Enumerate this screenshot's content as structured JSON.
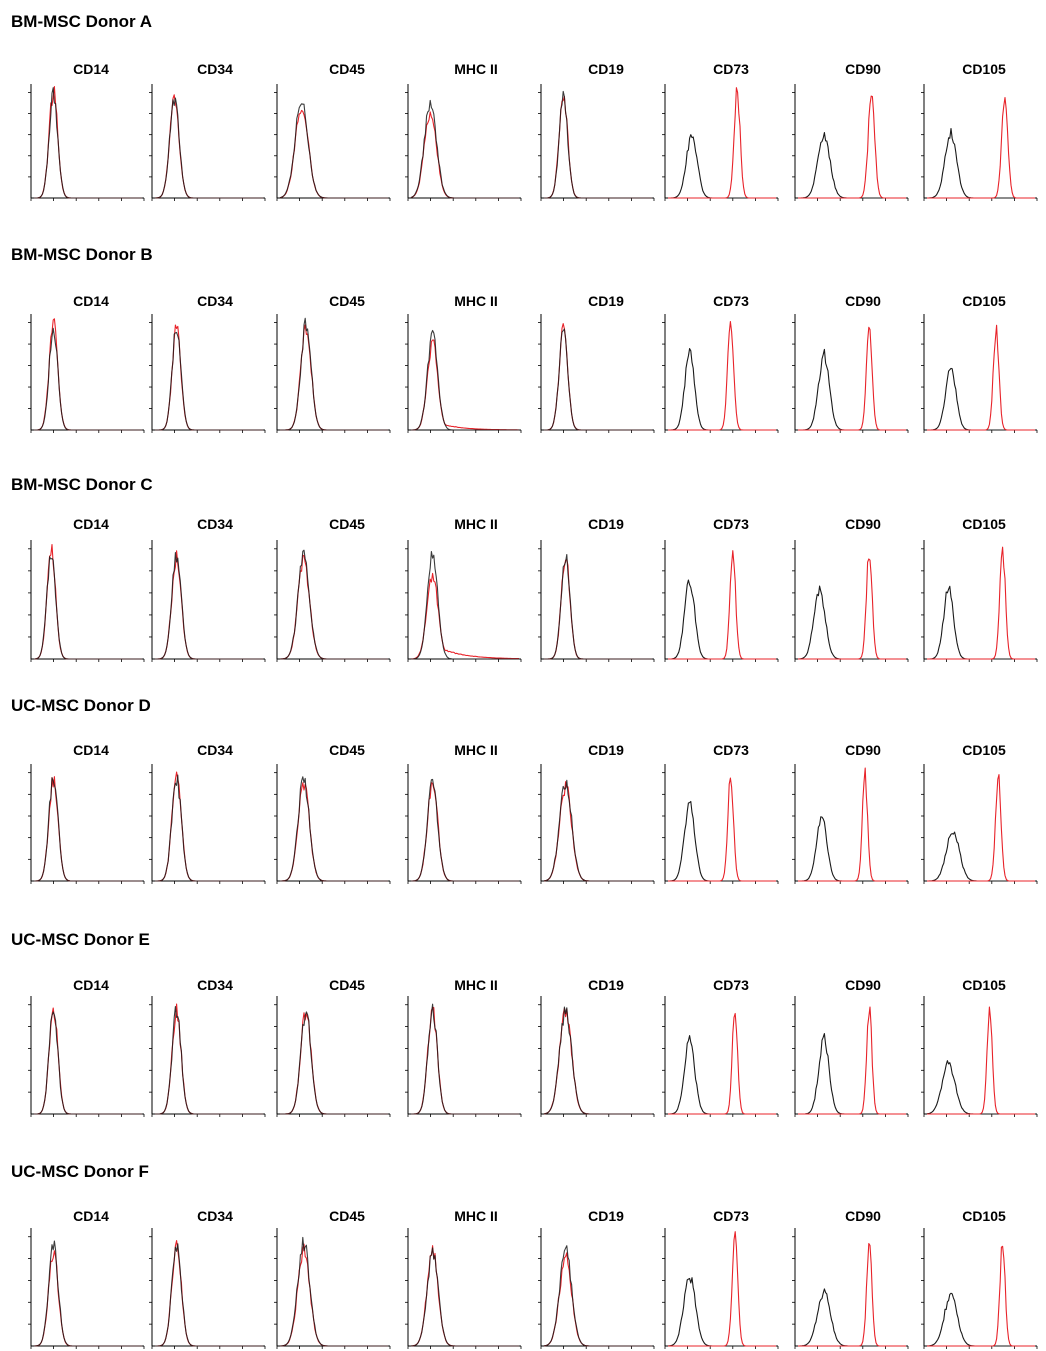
{
  "figure": {
    "type": "flow-cytometry-histogram-panel",
    "colors": {
      "isotype": "#1a1a1a",
      "stained": "#e8232a",
      "background": "#ffffff"
    },
    "markers": [
      "CD14",
      "CD34",
      "CD45",
      "MHC II",
      "CD19",
      "CD73",
      "CD90",
      "CD105"
    ]
  },
  "chart_data": {
    "type": "histogram-grid",
    "x_scale": "log (fluorescence intensity, 5 decades)",
    "series_colors": {
      "isotype": "black",
      "stained": "red"
    },
    "rows": [
      {
        "donor": "BM-MSC Donor A",
        "panels": [
          {
            "marker": "CD14",
            "isotype_peak": 0.9,
            "stained_peak": 0.9,
            "isotype_width": 0.2,
            "stained_width": 0.2,
            "isotype_height": 0.95,
            "stained_height": 0.98,
            "stained_tail": 0
          },
          {
            "marker": "CD34",
            "isotype_peak": 0.9,
            "stained_peak": 0.9,
            "isotype_width": 0.22,
            "stained_width": 0.22,
            "isotype_height": 0.92,
            "stained_height": 0.9,
            "stained_tail": 0
          },
          {
            "marker": "CD45",
            "isotype_peak": 1.0,
            "stained_peak": 1.0,
            "isotype_width": 0.3,
            "stained_width": 0.3,
            "isotype_height": 0.9,
            "stained_height": 0.85,
            "stained_tail": 0
          },
          {
            "marker": "MHC II",
            "isotype_peak": 0.9,
            "stained_peak": 0.9,
            "isotype_width": 0.28,
            "stained_width": 0.28,
            "isotype_height": 0.88,
            "stained_height": 0.8,
            "stained_tail": 0
          },
          {
            "marker": "CD19",
            "isotype_peak": 0.9,
            "stained_peak": 0.9,
            "isotype_width": 0.2,
            "stained_width": 0.2,
            "isotype_height": 0.92,
            "stained_height": 0.95,
            "stained_tail": 0
          },
          {
            "marker": "CD73",
            "isotype_peak": 1.1,
            "stained_peak": 3.2,
            "isotype_width": 0.25,
            "stained_width": 0.14,
            "isotype_height": 0.58,
            "stained_height": 0.98,
            "stained_tail": 0
          },
          {
            "marker": "CD90",
            "isotype_peak": 1.2,
            "stained_peak": 3.4,
            "isotype_width": 0.28,
            "stained_width": 0.15,
            "isotype_height": 0.58,
            "stained_height": 0.95,
            "stained_tail": 0
          },
          {
            "marker": "CD105",
            "isotype_peak": 1.1,
            "stained_peak": 3.6,
            "isotype_width": 0.27,
            "stained_width": 0.14,
            "isotype_height": 0.6,
            "stained_height": 0.95,
            "stained_tail": 0
          }
        ]
      },
      {
        "donor": "BM-MSC Donor B",
        "panels": [
          {
            "marker": "CD14",
            "isotype_peak": 0.9,
            "stained_peak": 0.9,
            "isotype_width": 0.2,
            "stained_width": 0.2,
            "isotype_height": 0.92,
            "stained_height": 0.96,
            "stained_tail": 0
          },
          {
            "marker": "CD34",
            "isotype_peak": 1.0,
            "stained_peak": 1.0,
            "isotype_width": 0.2,
            "stained_width": 0.2,
            "isotype_height": 0.95,
            "stained_height": 0.92,
            "stained_tail": 0
          },
          {
            "marker": "CD45",
            "isotype_peak": 1.2,
            "stained_peak": 1.2,
            "isotype_width": 0.24,
            "stained_width": 0.24,
            "isotype_height": 0.95,
            "stained_height": 0.93,
            "stained_tail": 0
          },
          {
            "marker": "MHC II",
            "isotype_peak": 1.0,
            "stained_peak": 1.0,
            "isotype_width": 0.24,
            "stained_width": 0.24,
            "isotype_height": 0.85,
            "stained_height": 0.8,
            "stained_tail": 0.6
          },
          {
            "marker": "CD19",
            "isotype_peak": 0.9,
            "stained_peak": 0.9,
            "isotype_width": 0.2,
            "stained_width": 0.2,
            "isotype_height": 0.9,
            "stained_height": 0.93,
            "stained_tail": 0
          },
          {
            "marker": "CD73",
            "isotype_peak": 1.0,
            "stained_peak": 2.9,
            "isotype_width": 0.22,
            "stained_width": 0.14,
            "isotype_height": 0.72,
            "stained_height": 0.95,
            "stained_tail": 0
          },
          {
            "marker": "CD90",
            "isotype_peak": 1.2,
            "stained_peak": 3.3,
            "isotype_width": 0.25,
            "stained_width": 0.13,
            "isotype_height": 0.68,
            "stained_height": 0.97,
            "stained_tail": 0
          },
          {
            "marker": "CD105",
            "isotype_peak": 1.1,
            "stained_peak": 3.2,
            "isotype_width": 0.24,
            "stained_width": 0.13,
            "isotype_height": 0.56,
            "stained_height": 0.9,
            "stained_tail": 0
          }
        ]
      },
      {
        "donor": "BM-MSC Donor C",
        "panels": [
          {
            "marker": "CD14",
            "isotype_peak": 0.8,
            "stained_peak": 0.8,
            "isotype_width": 0.2,
            "stained_width": 0.2,
            "isotype_height": 0.95,
            "stained_height": 0.95,
            "stained_tail": 0
          },
          {
            "marker": "CD34",
            "isotype_peak": 1.0,
            "stained_peak": 1.0,
            "isotype_width": 0.22,
            "stained_width": 0.22,
            "isotype_height": 0.92,
            "stained_height": 0.9,
            "stained_tail": 0
          },
          {
            "marker": "CD45",
            "isotype_peak": 1.1,
            "stained_peak": 1.1,
            "isotype_width": 0.27,
            "stained_width": 0.27,
            "isotype_height": 0.9,
            "stained_height": 0.88,
            "stained_tail": 0
          },
          {
            "marker": "MHC II",
            "isotype_peak": 1.0,
            "stained_peak": 1.0,
            "isotype_width": 0.24,
            "stained_width": 0.26,
            "isotype_height": 0.92,
            "stained_height": 0.75,
            "stained_tail": 1.0
          },
          {
            "marker": "CD19",
            "isotype_peak": 1.0,
            "stained_peak": 1.0,
            "isotype_width": 0.2,
            "stained_width": 0.2,
            "isotype_height": 0.92,
            "stained_height": 0.9,
            "stained_tail": 0
          },
          {
            "marker": "CD73",
            "isotype_peak": 1.0,
            "stained_peak": 3.0,
            "isotype_width": 0.23,
            "stained_width": 0.13,
            "isotype_height": 0.7,
            "stained_height": 0.95,
            "stained_tail": 0
          },
          {
            "marker": "CD90",
            "isotype_peak": 1.0,
            "stained_peak": 3.3,
            "isotype_width": 0.26,
            "stained_width": 0.13,
            "isotype_height": 0.62,
            "stained_height": 0.95,
            "stained_tail": 0
          },
          {
            "marker": "CD105",
            "isotype_peak": 1.0,
            "stained_peak": 3.5,
            "isotype_width": 0.23,
            "stained_width": 0.13,
            "isotype_height": 0.62,
            "stained_height": 0.95,
            "stained_tail": 0
          }
        ]
      },
      {
        "donor": "UC-MSC Donor D",
        "panels": [
          {
            "marker": "CD14",
            "isotype_peak": 0.9,
            "stained_peak": 0.9,
            "isotype_width": 0.21,
            "stained_width": 0.21,
            "isotype_height": 0.95,
            "stained_height": 0.92,
            "stained_tail": 0
          },
          {
            "marker": "CD34",
            "isotype_peak": 1.0,
            "stained_peak": 1.0,
            "isotype_width": 0.22,
            "stained_width": 0.22,
            "isotype_height": 0.92,
            "stained_height": 0.92,
            "stained_tail": 0
          },
          {
            "marker": "CD45",
            "isotype_peak": 1.1,
            "stained_peak": 1.1,
            "isotype_width": 0.26,
            "stained_width": 0.26,
            "isotype_height": 0.92,
            "stained_height": 0.88,
            "stained_tail": 0
          },
          {
            "marker": "MHC II",
            "isotype_peak": 1.0,
            "stained_peak": 1.0,
            "isotype_width": 0.24,
            "stained_width": 0.24,
            "isotype_height": 0.88,
            "stained_height": 0.88,
            "stained_tail": 0
          },
          {
            "marker": "CD19",
            "isotype_peak": 1.0,
            "stained_peak": 1.0,
            "isotype_width": 0.28,
            "stained_width": 0.28,
            "isotype_height": 0.9,
            "stained_height": 0.85,
            "stained_tail": 0
          },
          {
            "marker": "CD73",
            "isotype_peak": 1.0,
            "stained_peak": 2.9,
            "isotype_width": 0.24,
            "stained_width": 0.13,
            "isotype_height": 0.7,
            "stained_height": 0.95,
            "stained_tail": 0
          },
          {
            "marker": "CD90",
            "isotype_peak": 1.1,
            "stained_peak": 3.1,
            "isotype_width": 0.24,
            "stained_width": 0.12,
            "isotype_height": 0.58,
            "stained_height": 0.95,
            "stained_tail": 0
          },
          {
            "marker": "CD105",
            "isotype_peak": 1.2,
            "stained_peak": 3.3,
            "isotype_width": 0.3,
            "stained_width": 0.13,
            "isotype_height": 0.45,
            "stained_height": 0.92,
            "stained_tail": 0
          }
        ]
      },
      {
        "donor": "UC-MSC Donor E",
        "panels": [
          {
            "marker": "CD14",
            "isotype_peak": 0.9,
            "stained_peak": 0.9,
            "isotype_width": 0.2,
            "stained_width": 0.2,
            "isotype_height": 0.95,
            "stained_height": 0.95,
            "stained_tail": 0
          },
          {
            "marker": "CD34",
            "isotype_peak": 1.0,
            "stained_peak": 1.0,
            "isotype_width": 0.21,
            "stained_width": 0.21,
            "isotype_height": 0.92,
            "stained_height": 0.92,
            "stained_tail": 0
          },
          {
            "marker": "CD45",
            "isotype_peak": 1.2,
            "stained_peak": 1.2,
            "isotype_width": 0.24,
            "stained_width": 0.24,
            "isotype_height": 0.92,
            "stained_height": 0.92,
            "stained_tail": 0
          },
          {
            "marker": "MHC II",
            "isotype_peak": 1.0,
            "stained_peak": 1.0,
            "isotype_width": 0.22,
            "stained_width": 0.22,
            "isotype_height": 0.92,
            "stained_height": 0.92,
            "stained_tail": 0
          },
          {
            "marker": "CD19",
            "isotype_peak": 1.0,
            "stained_peak": 1.0,
            "isotype_width": 0.28,
            "stained_width": 0.28,
            "isotype_height": 0.92,
            "stained_height": 0.92,
            "stained_tail": 0
          },
          {
            "marker": "CD73",
            "isotype_peak": 1.0,
            "stained_peak": 3.1,
            "isotype_width": 0.24,
            "stained_width": 0.12,
            "isotype_height": 0.65,
            "stained_height": 0.95,
            "stained_tail": 0
          },
          {
            "marker": "CD90",
            "isotype_peak": 1.2,
            "stained_peak": 3.3,
            "isotype_width": 0.24,
            "stained_width": 0.12,
            "isotype_height": 0.68,
            "stained_height": 0.95,
            "stained_tail": 0
          },
          {
            "marker": "CD105",
            "isotype_peak": 1.0,
            "stained_peak": 2.9,
            "isotype_width": 0.3,
            "stained_width": 0.12,
            "isotype_height": 0.45,
            "stained_height": 0.92,
            "stained_tail": 0
          }
        ]
      },
      {
        "donor": "UC-MSC Donor F",
        "panels": [
          {
            "marker": "CD14",
            "isotype_peak": 0.9,
            "stained_peak": 0.9,
            "isotype_width": 0.22,
            "stained_width": 0.22,
            "isotype_height": 0.9,
            "stained_height": 0.85,
            "stained_tail": 0
          },
          {
            "marker": "CD34",
            "isotype_peak": 1.0,
            "stained_peak": 1.0,
            "isotype_width": 0.22,
            "stained_width": 0.22,
            "isotype_height": 0.9,
            "stained_height": 0.88,
            "stained_tail": 0
          },
          {
            "marker": "CD45",
            "isotype_peak": 1.1,
            "stained_peak": 1.1,
            "isotype_width": 0.28,
            "stained_width": 0.28,
            "isotype_height": 0.92,
            "stained_height": 0.85,
            "stained_tail": 0
          },
          {
            "marker": "MHC II",
            "isotype_peak": 1.0,
            "stained_peak": 1.0,
            "isotype_width": 0.26,
            "stained_width": 0.26,
            "isotype_height": 0.82,
            "stained_height": 0.85,
            "stained_tail": 0
          },
          {
            "marker": "CD19",
            "isotype_peak": 1.0,
            "stained_peak": 1.0,
            "isotype_width": 0.28,
            "stained_width": 0.28,
            "isotype_height": 0.85,
            "stained_height": 0.8,
            "stained_tail": 0
          },
          {
            "marker": "CD73",
            "isotype_peak": 1.0,
            "stained_peak": 3.1,
            "isotype_width": 0.27,
            "stained_width": 0.13,
            "isotype_height": 0.62,
            "stained_height": 0.95,
            "stained_tail": 0
          },
          {
            "marker": "CD90",
            "isotype_peak": 1.2,
            "stained_peak": 3.3,
            "isotype_width": 0.3,
            "stained_width": 0.12,
            "isotype_height": 0.48,
            "stained_height": 0.92,
            "stained_tail": 0
          },
          {
            "marker": "CD105",
            "isotype_peak": 1.1,
            "stained_peak": 3.5,
            "isotype_width": 0.3,
            "stained_width": 0.12,
            "isotype_height": 0.45,
            "stained_height": 0.92,
            "stained_tail": 0
          }
        ]
      }
    ]
  }
}
